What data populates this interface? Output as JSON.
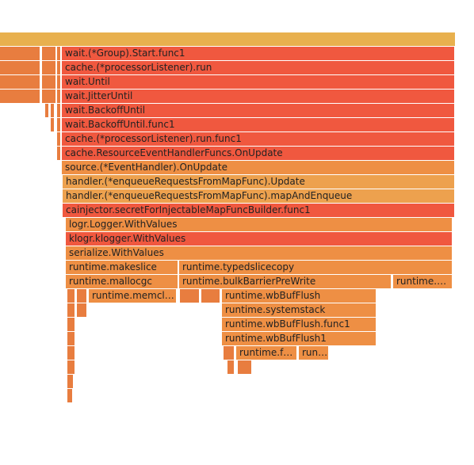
{
  "chart_data": {
    "type": "flamegraph",
    "colors": {
      "root": "#e8b04e",
      "red": "#f0583f",
      "orange": "#ee8f44",
      "dark": "#e87d3f",
      "light": "#eda14e"
    },
    "frames": [
      {
        "label": "",
        "color": "gold",
        "row": 0,
        "start": 0,
        "width": 575
      },
      {
        "label": "",
        "color": "dark",
        "row": 1,
        "start": 0,
        "width": 51
      },
      {
        "label": "",
        "color": "dark",
        "row": 1,
        "start": 53,
        "width": 18
      },
      {
        "label": "",
        "color": "dark",
        "row": 1,
        "start": 72,
        "width": 5
      },
      {
        "label": "wait.(*Group).Start.func1",
        "color": "red",
        "row": 1,
        "start": 78,
        "width": 496
      },
      {
        "label": "",
        "color": "dark",
        "row": 2,
        "start": 0,
        "width": 51
      },
      {
        "label": "",
        "color": "dark",
        "row": 2,
        "start": 53,
        "width": 18
      },
      {
        "label": "",
        "color": "dark",
        "row": 2,
        "start": 72,
        "width": 5
      },
      {
        "label": "cache.(*processorListener).run",
        "color": "red",
        "row": 2,
        "start": 78,
        "width": 496
      },
      {
        "label": "",
        "color": "dark",
        "row": 3,
        "start": 0,
        "width": 51
      },
      {
        "label": "",
        "color": "dark",
        "row": 3,
        "start": 53,
        "width": 18
      },
      {
        "label": "",
        "color": "dark",
        "row": 3,
        "start": 72,
        "width": 5
      },
      {
        "label": "wait.Until",
        "color": "red",
        "row": 3,
        "start": 78,
        "width": 496
      },
      {
        "label": "",
        "color": "dark",
        "row": 4,
        "start": 0,
        "width": 51
      },
      {
        "label": "",
        "color": "dark",
        "row": 4,
        "start": 53,
        "width": 18
      },
      {
        "label": "",
        "color": "dark",
        "row": 4,
        "start": 72,
        "width": 5
      },
      {
        "label": "wait.JitterUntil",
        "color": "red",
        "row": 4,
        "start": 78,
        "width": 496
      },
      {
        "label": "",
        "color": "dark",
        "row": 5,
        "start": 57,
        "width": 5
      },
      {
        "label": "",
        "color": "dark",
        "row": 5,
        "start": 64,
        "width": 5
      },
      {
        "label": "",
        "color": "dark",
        "row": 5,
        "start": 72,
        "width": 5
      },
      {
        "label": "wait.BackoffUntil",
        "color": "red",
        "row": 5,
        "start": 78,
        "width": 496
      },
      {
        "label": "",
        "color": "dark",
        "row": 6,
        "start": 64,
        "width": 5
      },
      {
        "label": "",
        "color": "dark",
        "row": 6,
        "start": 72,
        "width": 5
      },
      {
        "label": "wait.BackoffUntil.func1",
        "color": "red",
        "row": 6,
        "start": 78,
        "width": 496
      },
      {
        "label": "",
        "color": "dark",
        "row": 7,
        "start": 72,
        "width": 5
      },
      {
        "label": "cache.(*processorListener).run.func1",
        "color": "red",
        "row": 7,
        "start": 78,
        "width": 496
      },
      {
        "label": "",
        "color": "dark",
        "row": 8,
        "start": 72,
        "width": 5
      },
      {
        "label": "cache.ResourceEventHandlerFuncs.OnUpdate",
        "color": "red",
        "row": 8,
        "start": 78,
        "width": 496
      },
      {
        "label": "source.(*EventHandler).OnUpdate",
        "color": "orange",
        "row": 9,
        "start": 78,
        "width": 496
      },
      {
        "label": "handler.(*enqueueRequestsFromMapFunc).Update",
        "color": "light",
        "row": 10,
        "start": 79,
        "width": 495
      },
      {
        "label": "handler.(*enqueueRequestsFromMapFunc).mapAndEnqueue",
        "color": "light",
        "row": 11,
        "start": 79,
        "width": 495
      },
      {
        "label": "cainjector.secretForInjectableMapFuncBuilder.func1",
        "color": "red",
        "row": 12,
        "start": 79,
        "width": 495
      },
      {
        "label": "logr.Logger.WithValues",
        "color": "orange",
        "row": 13,
        "start": 83,
        "width": 488
      },
      {
        "label": "klogr.klogger.WithValues",
        "color": "red",
        "row": 14,
        "start": 83,
        "width": 488
      },
      {
        "label": "serialize.WithValues",
        "color": "orange",
        "row": 15,
        "start": 83,
        "width": 488
      },
      {
        "label": "runtime.makeslice",
        "color": "orange",
        "row": 16,
        "start": 83,
        "width": 142
      },
      {
        "label": "runtime.typedslicecopy",
        "color": "orange",
        "row": 16,
        "start": 226,
        "width": 345
      },
      {
        "label": "runtime.mallocgc",
        "color": "orange",
        "row": 17,
        "start": 83,
        "width": 142
      },
      {
        "label": "runtime.bulkBarrierPreWrite",
        "color": "orange",
        "row": 17,
        "start": 226,
        "width": 268
      },
      {
        "label": "runtime.…",
        "color": "orange",
        "row": 17,
        "start": 496,
        "width": 75
      },
      {
        "label": "",
        "color": "dark",
        "row": 18,
        "start": 85,
        "width": 10
      },
      {
        "label": "",
        "color": "dark",
        "row": 18,
        "start": 97,
        "width": 13
      },
      {
        "label": "runtime.memcl…",
        "color": "orange",
        "row": 18,
        "start": 112,
        "width": 111
      },
      {
        "label": "",
        "color": "dark",
        "row": 18,
        "start": 227,
        "width": 25
      },
      {
        "label": "",
        "color": "dark",
        "row": 18,
        "start": 254,
        "width": 24
      },
      {
        "label": "runtime.wbBufFlush",
        "color": "orange",
        "row": 18,
        "start": 280,
        "width": 195
      },
      {
        "label": "",
        "color": "dark",
        "row": 19,
        "start": 85,
        "width": 10
      },
      {
        "label": "",
        "color": "dark",
        "row": 19,
        "start": 97,
        "width": 13
      },
      {
        "label": "runtime.systemstack",
        "color": "orange",
        "row": 19,
        "start": 280,
        "width": 195
      },
      {
        "label": "",
        "color": "dark",
        "row": 20,
        "start": 85,
        "width": 10
      },
      {
        "label": "runtime.wbBufFlush.func1",
        "color": "orange",
        "row": 20,
        "start": 280,
        "width": 195
      },
      {
        "label": "",
        "color": "dark",
        "row": 21,
        "start": 85,
        "width": 10
      },
      {
        "label": "runtime.wbBufFlush1",
        "color": "orange",
        "row": 21,
        "start": 280,
        "width": 195
      },
      {
        "label": "",
        "color": "dark",
        "row": 22,
        "start": 85,
        "width": 10
      },
      {
        "label": "",
        "color": "dark",
        "row": 22,
        "start": 282,
        "width": 14
      },
      {
        "label": "runtime.f…",
        "color": "orange",
        "row": 22,
        "start": 298,
        "width": 77
      },
      {
        "label": "run…",
        "color": "orange",
        "row": 22,
        "start": 377,
        "width": 38
      },
      {
        "label": "",
        "color": "dark",
        "row": 23,
        "start": 85,
        "width": 10
      },
      {
        "label": "",
        "color": "dark",
        "row": 23,
        "start": 287,
        "width": 9
      },
      {
        "label": "",
        "color": "dark",
        "row": 23,
        "start": 300,
        "width": 18
      },
      {
        "label": "",
        "color": "dark",
        "row": 24,
        "start": 85,
        "width": 8
      },
      {
        "label": "",
        "color": "dark",
        "row": 25,
        "start": 85,
        "width": 7
      }
    ]
  }
}
